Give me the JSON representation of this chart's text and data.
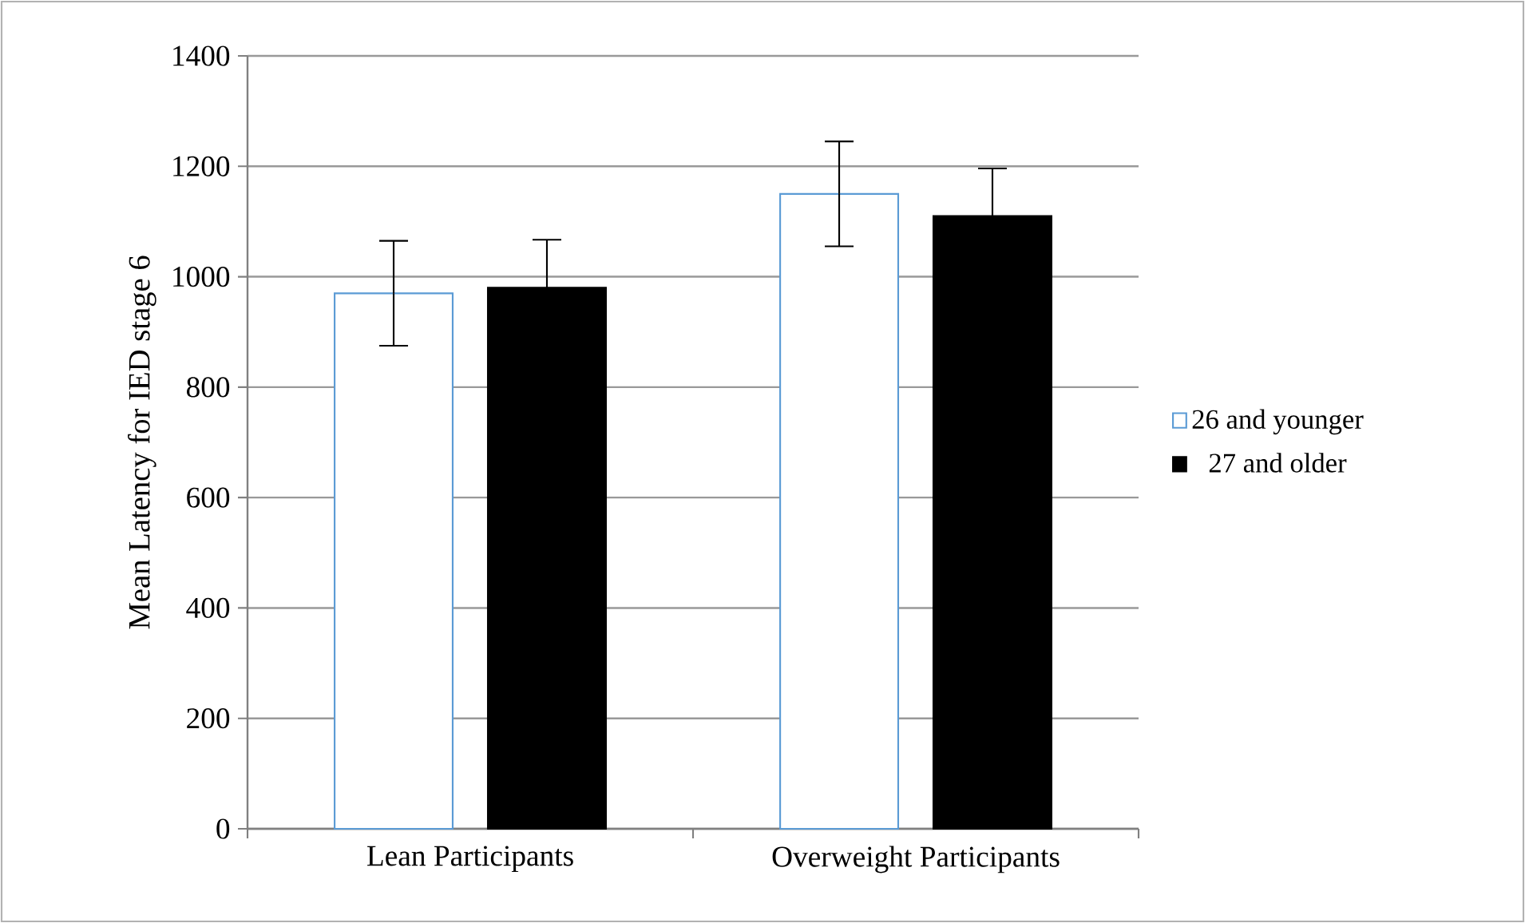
{
  "chart_data": {
    "type": "bar",
    "ylabel": "Mean Latency for IED stage 6",
    "categories": [
      "Lean Participants",
      "Overweight Participants"
    ],
    "series": [
      {
        "name": "26 and younger",
        "color": "#ffffff",
        "values": [
          970,
          1150
        ],
        "errors": [
          95,
          95
        ]
      },
      {
        "name": "27 and older",
        "color": "#000000",
        "values": [
          980,
          1110
        ],
        "errors": [
          87,
          86
        ]
      }
    ],
    "ylim": [
      0,
      1400
    ],
    "yticks": [
      0,
      200,
      400,
      600,
      800,
      1000,
      1200,
      1400
    ],
    "grid": "y",
    "legend": "right"
  }
}
